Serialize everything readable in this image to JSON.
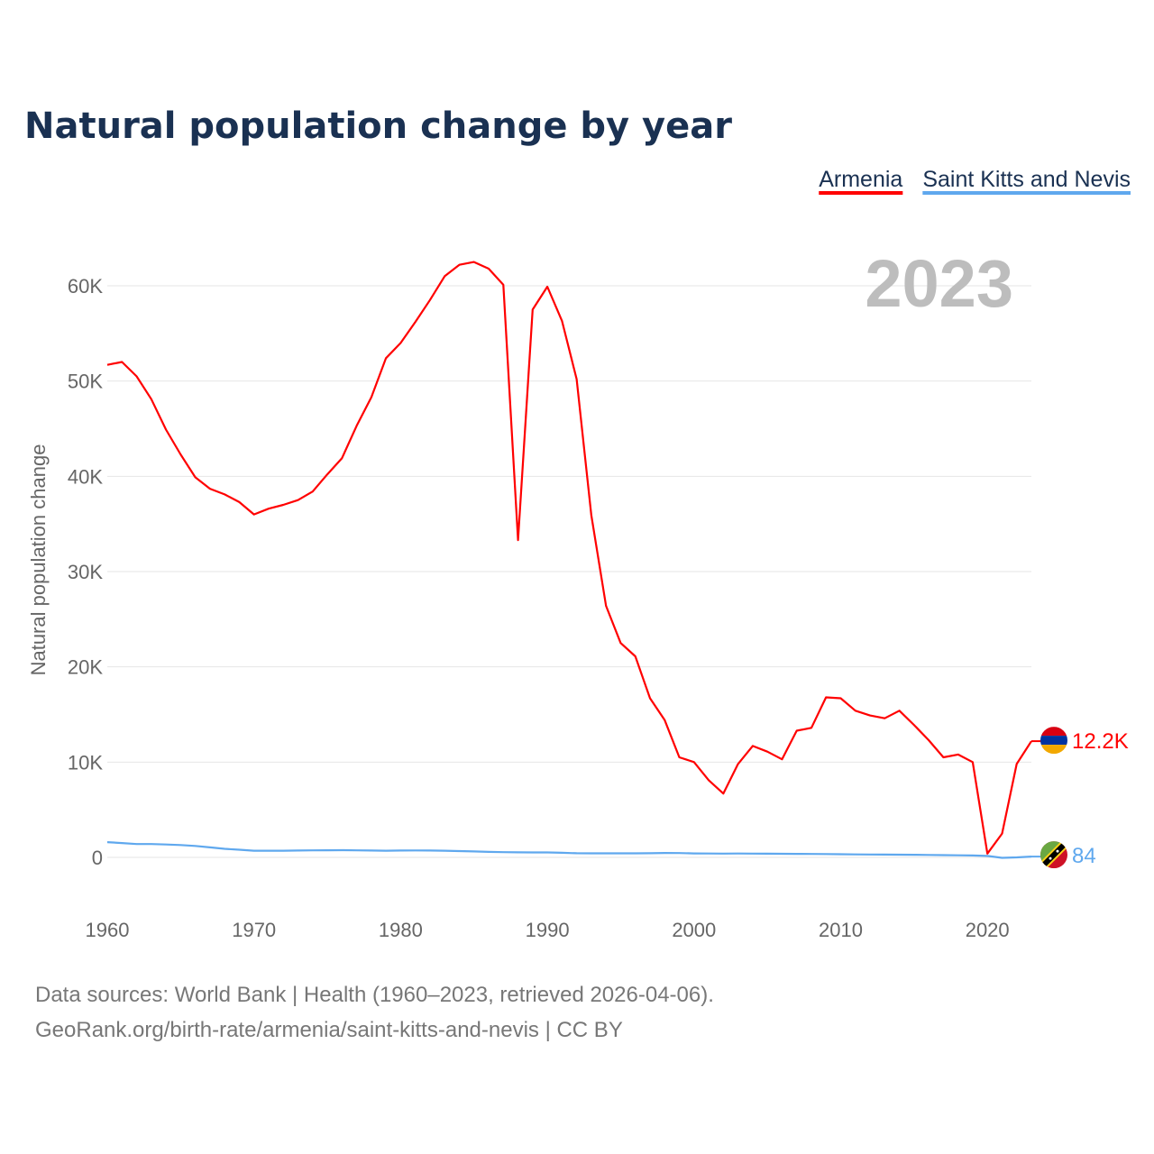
{
  "chart_data": {
    "type": "line",
    "title": "Natural population change by year",
    "ylabel": "Natural population change",
    "xlabel": "",
    "xlim": [
      1960,
      2023
    ],
    "ylim": [
      -4.6,
      65
    ],
    "y_unit": "thousands",
    "yticks": [
      0,
      10,
      20,
      30,
      40,
      50,
      60
    ],
    "ytick_labels": [
      "0",
      "10K",
      "20K",
      "30K",
      "40K",
      "50K",
      "60K"
    ],
    "xticks": [
      1960,
      1970,
      1980,
      1990,
      2000,
      2010,
      2020
    ],
    "xtick_labels": [
      "1960",
      "1970",
      "1980",
      "1990",
      "2000",
      "2010",
      "2020"
    ],
    "grid": true,
    "legend_position": "top-right",
    "year_watermark": "2023",
    "x": [
      1960,
      1961,
      1962,
      1963,
      1964,
      1965,
      1966,
      1967,
      1968,
      1969,
      1970,
      1971,
      1972,
      1973,
      1974,
      1975,
      1976,
      1977,
      1978,
      1979,
      1980,
      1981,
      1982,
      1983,
      1984,
      1985,
      1986,
      1987,
      1988,
      1989,
      1990,
      1991,
      1992,
      1993,
      1994,
      1995,
      1996,
      1997,
      1998,
      1999,
      2000,
      2001,
      2002,
      2003,
      2004,
      2005,
      2006,
      2007,
      2008,
      2009,
      2010,
      2011,
      2012,
      2013,
      2014,
      2015,
      2016,
      2017,
      2018,
      2019,
      2020,
      2021,
      2022,
      2023
    ],
    "series": [
      {
        "name": "Armenia",
        "color": "#ff0000",
        "end_label": "12.2K",
        "values": [
          51.7,
          52.0,
          50.5,
          48.1,
          44.9,
          42.3,
          39.9,
          38.7,
          38.1,
          37.3,
          36.0,
          36.6,
          37.0,
          37.5,
          38.4,
          40.2,
          41.9,
          45.3,
          48.3,
          52.4,
          54.0,
          56.2,
          58.5,
          61.0,
          62.2,
          62.5,
          61.8,
          60.1,
          33.3,
          57.5,
          59.9,
          56.3,
          50.2,
          35.9,
          26.4,
          22.5,
          21.1,
          16.7,
          14.4,
          10.5,
          10.0,
          8.1,
          6.7,
          9.8,
          11.7,
          11.1,
          10.3,
          13.3,
          13.6,
          16.8,
          16.7,
          15.4,
          14.9,
          14.6,
          15.4,
          13.9,
          12.3,
          10.5,
          10.8,
          10.0,
          0.4,
          2.5,
          9.8,
          12.2
        ]
      },
      {
        "name": "Saint Kitts and Nevis",
        "color": "#5fa8ee",
        "end_label": "84",
        "values": [
          1.6,
          1.5,
          1.4,
          1.4,
          1.35,
          1.3,
          1.2,
          1.05,
          0.9,
          0.8,
          0.7,
          0.7,
          0.7,
          0.72,
          0.74,
          0.75,
          0.76,
          0.74,
          0.72,
          0.7,
          0.72,
          0.73,
          0.72,
          0.7,
          0.66,
          0.62,
          0.58,
          0.55,
          0.53,
          0.52,
          0.52,
          0.48,
          0.44,
          0.43,
          0.43,
          0.43,
          0.43,
          0.44,
          0.46,
          0.45,
          0.42,
          0.41,
          0.4,
          0.41,
          0.4,
          0.39,
          0.38,
          0.37,
          0.36,
          0.35,
          0.33,
          0.31,
          0.3,
          0.29,
          0.28,
          0.27,
          0.26,
          0.24,
          0.22,
          0.2,
          0.15,
          -0.05,
          0.0,
          0.084
        ]
      }
    ]
  },
  "footer": {
    "line1": "Data sources: World Bank | Health (1960–2023, retrieved 2026-04-06).",
    "line2": "GeoRank.org/birth-rate/armenia/saint-kitts-and-nevis | CC BY"
  }
}
